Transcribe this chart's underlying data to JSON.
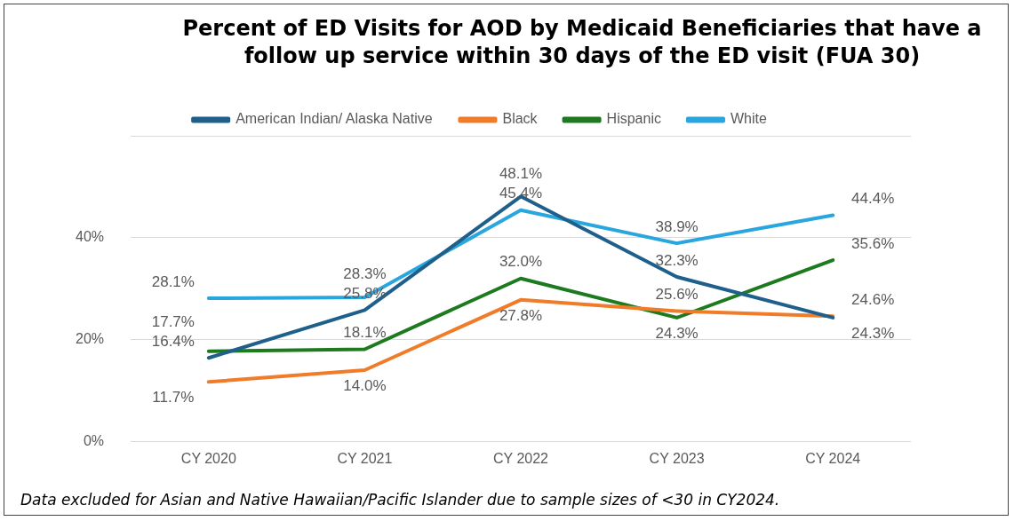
{
  "chart_data": {
    "type": "line",
    "title": "Percent of ED Visits for AOD by Medicaid Beneficiaries that have a follow up service within 30 days of the ED visit (FUA 30)",
    "categories": [
      "CY 2020",
      "CY 2021",
      "CY 2022",
      "CY 2023",
      "CY 2024"
    ],
    "series": [
      {
        "name": "American Indian/ Alaska Native",
        "color": "#1f5f8b",
        "values": [
          16.4,
          25.8,
          48.1,
          32.3,
          24.3
        ],
        "value_labels": [
          "16.4%",
          "25.8%",
          "48.1%",
          "32.3%",
          "24.3%"
        ]
      },
      {
        "name": "Black",
        "color": "#f07c2a",
        "values": [
          11.7,
          14.0,
          27.8,
          25.6,
          24.6
        ],
        "value_labels": [
          "11.7%",
          "14.0%",
          "27.8%",
          "25.6%",
          "24.6%"
        ]
      },
      {
        "name": "Hispanic",
        "color": "#1e7a1e",
        "values": [
          17.7,
          18.1,
          32.0,
          24.3,
          35.6
        ],
        "value_labels": [
          "17.7%",
          "18.1%",
          "32.0%",
          "24.3%",
          "35.6%"
        ]
      },
      {
        "name": "White",
        "color": "#2aa6de",
        "values": [
          28.1,
          28.3,
          45.4,
          38.9,
          44.4
        ],
        "value_labels": [
          "28.1%",
          "28.3%",
          "45.4%",
          "38.9%",
          "44.4%"
        ]
      }
    ],
    "ylim": [
      0,
      60
    ],
    "yticks": [
      {
        "value": 0,
        "label": "0%"
      },
      {
        "value": 20,
        "label": "20%"
      },
      {
        "value": 40,
        "label": "40%"
      },
      {
        "value": 60,
        "label": null
      }
    ],
    "grid": "y",
    "legend": "top",
    "marker": "none",
    "line_style": "solid",
    "annotations": [
      "Data excluded for Asian and Native Hawaiian/Pacific Islander due to sample sizes of <30 in CY2024."
    ]
  }
}
